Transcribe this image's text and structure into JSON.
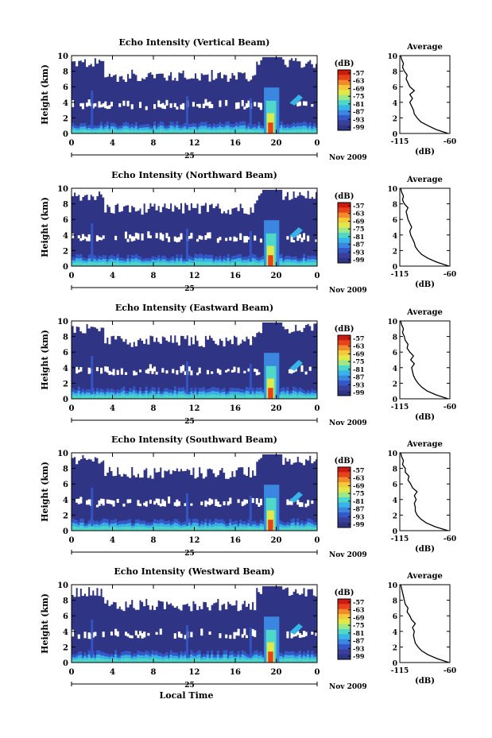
{
  "figure": {
    "colorbar_unit": "(dB)",
    "colorbar_ticks": [
      "-57",
      "-63",
      "-69",
      "-75",
      "-81",
      "-87",
      "-93",
      "-99"
    ],
    "colorbar_colors": [
      "#cc1a10",
      "#e8421a",
      "#f08a2a",
      "#f5c83a",
      "#e0e84a",
      "#9ee88a",
      "#4fd8c8",
      "#38b4e8",
      "#3a86e0",
      "#3458c8",
      "#3a3f9a",
      "#2f3585"
    ],
    "avg_title": "Average",
    "avg_xlabel": "(dB)",
    "avg_xticks": [
      "-115",
      "-60"
    ],
    "xlabel": "Local Time",
    "date_label": "25",
    "month_label": "Nov 2009",
    "ylabel": "Height (km)"
  },
  "chart_data": [
    {
      "type": "heatmap",
      "title": "Echo Intensity (Vertical Beam)",
      "ylabel": "Height (km)",
      "x_ticks": [
        "0",
        "4",
        "8",
        "12",
        "16",
        "20",
        "0"
      ],
      "y_ticks": [
        "0",
        "2",
        "4",
        "6",
        "8",
        "10"
      ],
      "xlim": [
        0,
        24
      ],
      "ylim": [
        0,
        10
      ],
      "profile": {
        "title": "Average",
        "xlim": [
          -115,
          -60
        ],
        "ylim": [
          0,
          10
        ],
        "heights": [
          0,
          0.5,
          1,
          1.5,
          2,
          2.5,
          3,
          3.5,
          4,
          4.5,
          5,
          5.5,
          6,
          6.5,
          7,
          7.5,
          8,
          8.5,
          9,
          9.5,
          10
        ],
        "values": [
          -62,
          -75,
          -84,
          -92,
          -96,
          -99,
          -100,
          -102,
          -104,
          -101,
          -104,
          -99,
          -104,
          -106,
          -108,
          -107,
          -110,
          -112,
          -111,
          -113,
          -114
        ]
      }
    },
    {
      "type": "heatmap",
      "title": "Echo Intensity (Northward Beam)",
      "ylabel": "Height (km)",
      "x_ticks": [
        "0",
        "4",
        "8",
        "12",
        "16",
        "20",
        "0"
      ],
      "y_ticks": [
        "0",
        "2",
        "4",
        "6",
        "8",
        "10"
      ],
      "xlim": [
        0,
        24
      ],
      "ylim": [
        0,
        10
      ],
      "profile": {
        "title": "Average",
        "xlim": [
          -115,
          -60
        ],
        "ylim": [
          0,
          10
        ],
        "heights": [
          0,
          0.5,
          1,
          1.5,
          2,
          2.5,
          3,
          3.5,
          4,
          4.5,
          5,
          5.5,
          6,
          6.5,
          7,
          7.5,
          8,
          8.5,
          9,
          9.5,
          10
        ],
        "values": [
          -61,
          -74,
          -84,
          -91,
          -95,
          -98,
          -99,
          -101,
          -103,
          -104,
          -102,
          -104,
          -106,
          -107,
          -108,
          -106,
          -110,
          -112,
          -111,
          -113,
          -114
        ]
      }
    },
    {
      "type": "heatmap",
      "title": "Echo Intensity (Eastward Beam)",
      "ylabel": "Height (km)",
      "x_ticks": [
        "0",
        "4",
        "8",
        "12",
        "16",
        "20",
        "0"
      ],
      "y_ticks": [
        "0",
        "2",
        "4",
        "6",
        "8",
        "10"
      ],
      "xlim": [
        0,
        24
      ],
      "ylim": [
        0,
        10
      ],
      "profile": {
        "title": "Average",
        "xlim": [
          -115,
          -60
        ],
        "ylim": [
          0,
          10
        ],
        "heights": [
          0,
          0.5,
          1,
          1.5,
          2,
          2.5,
          3,
          3.5,
          4,
          4.5,
          5,
          5.5,
          6,
          6.5,
          7,
          7.5,
          8,
          8.5,
          9,
          9.5,
          10
        ],
        "values": [
          -62,
          -75,
          -85,
          -91,
          -95,
          -98,
          -100,
          -101,
          -102,
          -99,
          -103,
          -100,
          -104,
          -107,
          -106,
          -109,
          -110,
          -112,
          -111,
          -113,
          -114
        ]
      }
    },
    {
      "type": "heatmap",
      "title": "Echo Intensity (Southward Beam)",
      "ylabel": "Height (km)",
      "x_ticks": [
        "0",
        "4",
        "8",
        "12",
        "16",
        "20",
        "0"
      ],
      "y_ticks": [
        "0",
        "2",
        "4",
        "6",
        "8",
        "10"
      ],
      "xlim": [
        0,
        24
      ],
      "ylim": [
        0,
        10
      ],
      "profile": {
        "title": "Average",
        "xlim": [
          -115,
          -60
        ],
        "ylim": [
          0,
          10
        ],
        "heights": [
          0,
          0.5,
          1,
          1.5,
          2,
          2.5,
          3,
          3.5,
          4,
          4.5,
          5,
          5.5,
          6,
          6.5,
          7,
          7.5,
          8,
          8.5,
          9,
          9.5,
          10
        ],
        "values": [
          -62,
          -76,
          -86,
          -92,
          -96,
          -98,
          -98,
          -99,
          -97,
          -99,
          -96,
          -101,
          -103,
          -106,
          -105,
          -109,
          -109,
          -112,
          -111,
          -113,
          -114
        ]
      }
    },
    {
      "type": "heatmap",
      "title": "Echo Intensity (Westward Beam)",
      "ylabel": "Height (km)",
      "x_ticks": [
        "0",
        "4",
        "8",
        "12",
        "16",
        "20",
        "0"
      ],
      "y_ticks": [
        "0",
        "2",
        "4",
        "6",
        "8",
        "10"
      ],
      "xlim": [
        0,
        24
      ],
      "ylim": [
        0,
        10
      ],
      "profile": {
        "title": "Average",
        "xlim": [
          -115,
          -60
        ],
        "ylim": [
          0,
          10
        ],
        "heights": [
          0,
          0.5,
          1,
          1.5,
          2,
          2.5,
          3,
          3.5,
          4,
          4.5,
          5,
          5.5,
          6,
          6.5,
          7,
          7.5,
          8,
          8.5,
          9,
          9.5,
          10
        ],
        "values": [
          -61,
          -74,
          -84,
          -91,
          -95,
          -98,
          -99,
          -100,
          -99,
          -101,
          -98,
          -102,
          -104,
          -107,
          -106,
          -109,
          -110,
          -111,
          -112,
          -113,
          -114
        ]
      }
    }
  ]
}
